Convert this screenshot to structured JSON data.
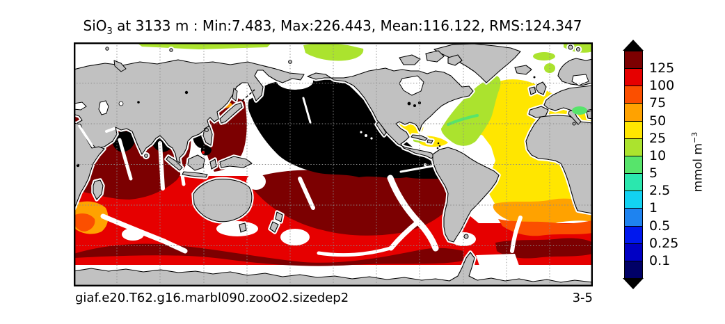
{
  "header": {
    "title_variable": "SiO",
    "title_subscript": "3",
    "title_rest": " at 3133 m : Min:7.483, Max:226.443, Mean:116.122, RMS:124.347"
  },
  "footer": {
    "run_id": "giaf.e20.T62.g16.marbl090.zooO2.sizedep2",
    "panel": "3-5"
  },
  "colorbar": {
    "unit_main": "mmol m",
    "unit_exponent": "−3",
    "ticks": [
      "125",
      "100",
      "75",
      "50",
      "25",
      "10",
      "5",
      "2.5",
      "1",
      "0.5",
      "0.25",
      "0.1"
    ],
    "segment_colors": [
      "#7C0001",
      "#E60000",
      "#FB4F00",
      "#FFA200",
      "#FFE600",
      "#ABE32E",
      "#57E46B",
      "#2BE7AE",
      "#12D2F2",
      "#1E83F0",
      "#0018EE",
      "#0000C4",
      "#000066"
    ],
    "over_arrow_color": "#000000",
    "under_arrow_color": "#000000"
  },
  "palette": {
    "over": "#000000",
    "c125_150": "#7C0001",
    "c100_125": "#E60000",
    "c75_100": "#FB4F00",
    "c50_75": "#FFA200",
    "c25_50": "#FFE600",
    "c10_25": "#ABE32E",
    "c5_10": "#57E46B",
    "land": "#C1C1C1",
    "coast": "#000000",
    "nodata": "#FFFFFF",
    "grid": "#8A8A8A",
    "frame": "#000000"
  },
  "chart_data": {
    "type": "heatmap",
    "title": "SiO3 at 3133 m : Min:7.483, Max:226.443, Mean:116.122, RMS:124.347",
    "variable": "SiO3",
    "depth": "3133 m",
    "stats": {
      "min": 7.483,
      "max": 226.443,
      "mean": 116.122,
      "rms": 124.347
    },
    "units": "mmol m^-3",
    "levels": [
      0.1,
      0.25,
      0.5,
      1,
      2.5,
      5,
      10,
      25,
      50,
      75,
      100,
      125
    ],
    "level_colors": [
      "#000066",
      "#0000C4",
      "#0018EE",
      "#1E83F0",
      "#12D2F2",
      "#2BE7AE",
      "#57E46B",
      "#ABE32E",
      "#FFE600",
      "#FFA200",
      "#FB4F00",
      "#E60000",
      "#7C0001"
    ],
    "over_color": "#000000",
    "legend_position": "right",
    "grid": true,
    "map_description": "Global ocean map (Pacific-centered equirectangular, ~30E at left edge) of dissolved silicate at 3133 m; land gray, no-data/shelves white; dashed graticule every 30 degrees",
    "regions": [
      {
        "region": "North and tropical Pacific",
        "value": "> 150 (off-scale black)"
      },
      {
        "region": "Arabian Sea and Bay of Bengal cores, South China Sea spots",
        "value": "> 150 (off-scale black)"
      },
      {
        "region": "Indian Ocean basins, western Pacific margin, South Pacific subtropics, circumpolar band ~60S",
        "value": "125–150"
      },
      {
        "region": "Southern Ocean mid-band, Tasman Sea, SW Pacific, far South Atlantic",
        "value": "100–125"
      },
      {
        "region": "South Atlantic band ~45-50S",
        "value": "75–100"
      },
      {
        "region": "SW Indian Ocean patch, S Atlantic band ~40S, Sea of Japan strip",
        "value": "50–75"
      },
      {
        "region": "North and South Atlantic, Gulf of Mexico, Caribbean",
        "value": "25–50"
      },
      {
        "region": "NW Atlantic along North America/Greenland, Arctic fringe patches",
        "value": "10–25"
      },
      {
        "region": "Mediterranean patch, Grand Banks fringe",
        "value": "5–10"
      },
      {
        "region": "Continental shelves, mid-ocean ridges, Arctic, Antarctic margin",
        "value": "no data (white)"
      }
    ]
  }
}
